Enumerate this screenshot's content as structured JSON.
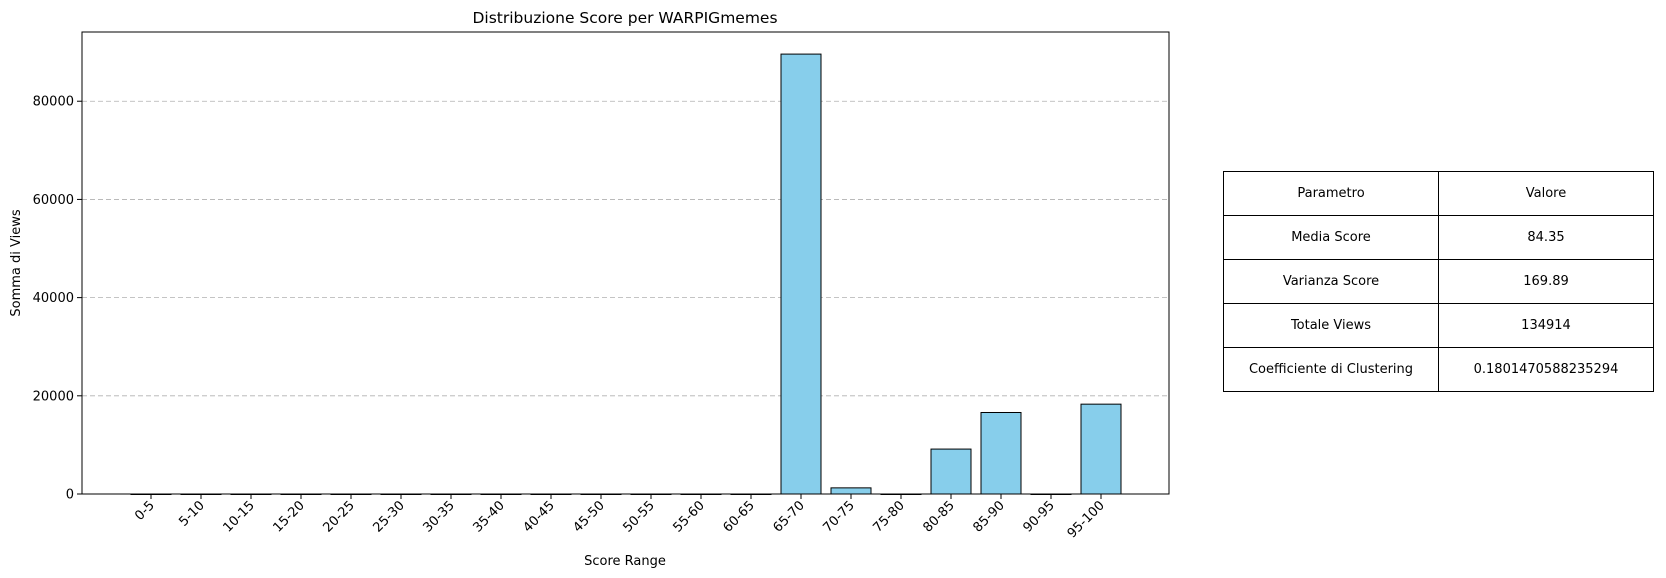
{
  "chart_data": {
    "type": "bar",
    "title": "Distribuzione Score per WARPIGmemes",
    "xlabel": "Score Range",
    "ylabel": "Somma di Views",
    "categories": [
      "0-5",
      "5-10",
      "10-15",
      "15-20",
      "20-25",
      "25-30",
      "30-35",
      "35-40",
      "40-45",
      "45-50",
      "50-55",
      "55-60",
      "60-65",
      "65-70",
      "70-75",
      "75-80",
      "80-85",
      "85-90",
      "90-95",
      "95-100"
    ],
    "values": [
      0,
      0,
      0,
      0,
      0,
      0,
      0,
      0,
      0,
      0,
      0,
      0,
      0,
      89600,
      1250,
      0,
      9150,
      16600,
      0,
      18300
    ],
    "ylim": [
      0,
      94100
    ],
    "yticks": [
      0,
      20000,
      40000,
      60000,
      80000
    ],
    "ytick_labels": [
      "0",
      "20000",
      "40000",
      "60000",
      "80000"
    ],
    "grid": "y-dashed",
    "bar_color": "#87CEEB",
    "bar_edge_color": "#000000"
  },
  "table": {
    "rows": [
      [
        "Parametro",
        "Valore"
      ],
      [
        "Media Score",
        "84.35"
      ],
      [
        "Varianza Score",
        "169.89"
      ],
      [
        "Totale Views",
        "134914"
      ],
      [
        "Coefficiente di Clustering",
        "0.1801470588235294"
      ]
    ]
  }
}
